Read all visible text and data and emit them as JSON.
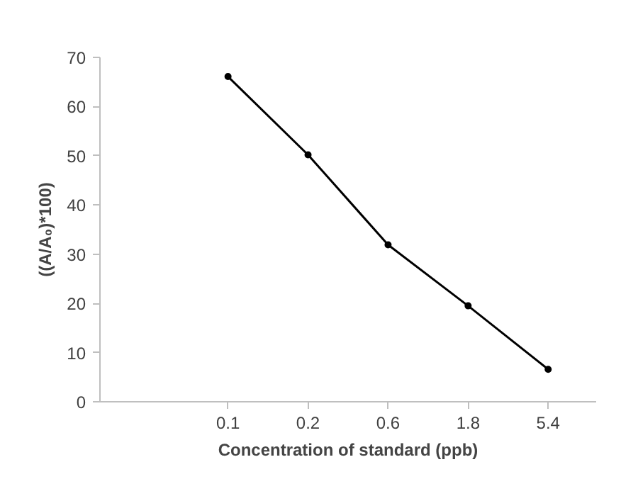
{
  "chart_data": {
    "type": "line",
    "xlabel": "Concentration of standard (ppb)",
    "ylabel": "((A/A₀)*100)",
    "categories": [
      "0.1",
      "0.2",
      "0.6",
      "1.8",
      "5.4"
    ],
    "series": [
      {
        "color": "#000000",
        "values": [
          66.1,
          50.2,
          31.9,
          19.5,
          6.6
        ]
      }
    ],
    "ylim": [
      0,
      70
    ],
    "yticks": [
      0,
      10,
      20,
      30,
      40,
      50,
      60,
      70
    ],
    "grid": false,
    "marker": "circle",
    "line_style": "solid"
  }
}
